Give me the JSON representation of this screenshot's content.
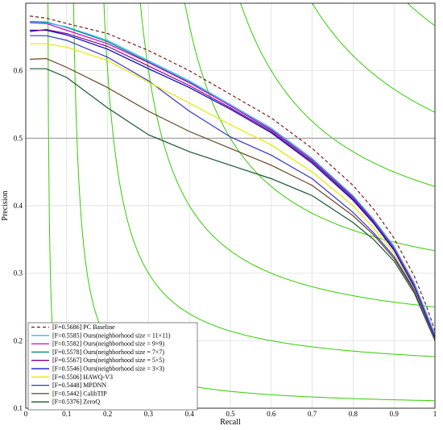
{
  "chart_data": {
    "type": "line",
    "xlabel": "Recall",
    "ylabel": "Precision",
    "xlim": [
      0,
      1
    ],
    "ylim": [
      0.1,
      0.7
    ],
    "xticks": [
      "0",
      "0.1",
      "0.2",
      "0.3",
      "0.4",
      "0.5",
      "0.6",
      "0.7",
      "0.8",
      "0.9",
      "1"
    ],
    "yticks": [
      "0.1",
      "0.2",
      "0.3",
      "0.4",
      "0.5",
      "0.6"
    ],
    "grid": true,
    "reference_line_y": 0.5,
    "legend_position": "bottom-left",
    "iso_f_color": "#33cc00",
    "iso_f_values": [
      0.1,
      0.2,
      0.3,
      0.4,
      0.5,
      0.6,
      0.7,
      0.8
    ],
    "series": [
      {
        "name": "[F=0.5686] PC Baseline",
        "color": "#7a1a1a",
        "dash": "4,3",
        "x": [
          0.01,
          0.05,
          0.1,
          0.2,
          0.3,
          0.4,
          0.5,
          0.6,
          0.7,
          0.8,
          0.85,
          0.9,
          0.95,
          0.98,
          1.0
        ],
        "y": [
          0.681,
          0.678,
          0.67,
          0.655,
          0.63,
          0.6,
          0.565,
          0.53,
          0.485,
          0.43,
          0.395,
          0.352,
          0.295,
          0.25,
          0.215
        ]
      },
      {
        "name": "[F=0.5585] Ours(neighborhood size = 11×11)",
        "color": "#33bbee",
        "dash": "",
        "x": [
          0.01,
          0.05,
          0.1,
          0.2,
          0.3,
          0.4,
          0.5,
          0.6,
          0.7,
          0.8,
          0.85,
          0.9,
          0.95,
          0.98,
          1.0
        ],
        "y": [
          0.672,
          0.671,
          0.665,
          0.645,
          0.615,
          0.585,
          0.55,
          0.515,
          0.47,
          0.415,
          0.38,
          0.34,
          0.285,
          0.24,
          0.21
        ]
      },
      {
        "name": "[F=0.5582] Ours(neighborhood size = 9×9)",
        "color": "#cc00cc",
        "dash": "",
        "x": [
          0.01,
          0.05,
          0.1,
          0.2,
          0.3,
          0.4,
          0.5,
          0.6,
          0.7,
          0.8,
          0.85,
          0.9,
          0.95,
          0.98,
          1.0
        ],
        "y": [
          0.671,
          0.67,
          0.66,
          0.64,
          0.612,
          0.582,
          0.548,
          0.513,
          0.468,
          0.413,
          0.378,
          0.338,
          0.283,
          0.238,
          0.208
        ]
      },
      {
        "name": "[F=0.5578] Ours(neighborhood size = 7×7)",
        "color": "#008080",
        "dash": "",
        "x": [
          0.01,
          0.05,
          0.1,
          0.2,
          0.3,
          0.4,
          0.5,
          0.6,
          0.7,
          0.8,
          0.85,
          0.9,
          0.95,
          0.98,
          1.0
        ],
        "y": [
          0.673,
          0.672,
          0.664,
          0.643,
          0.613,
          0.583,
          0.548,
          0.512,
          0.467,
          0.412,
          0.377,
          0.337,
          0.282,
          0.237,
          0.207
        ]
      },
      {
        "name": "[F=0.5567] Ours(neighborhood size = 5×5)",
        "color": "#880088",
        "dash": "",
        "x": [
          0.01,
          0.05,
          0.1,
          0.2,
          0.3,
          0.4,
          0.5,
          0.6,
          0.7,
          0.8,
          0.85,
          0.9,
          0.95,
          0.98,
          1.0
        ],
        "y": [
          0.658,
          0.661,
          0.655,
          0.636,
          0.607,
          0.578,
          0.545,
          0.51,
          0.465,
          0.41,
          0.376,
          0.336,
          0.281,
          0.236,
          0.206
        ]
      },
      {
        "name": "[F=0.5546] Ours(neighborhood size = 3×3)",
        "color": "#0000cc",
        "dash": "",
        "x": [
          0.01,
          0.05,
          0.1,
          0.2,
          0.3,
          0.4,
          0.5,
          0.6,
          0.7,
          0.8,
          0.85,
          0.9,
          0.95,
          0.98,
          1.0
        ],
        "y": [
          0.66,
          0.66,
          0.653,
          0.632,
          0.603,
          0.575,
          0.543,
          0.508,
          0.463,
          0.408,
          0.374,
          0.334,
          0.279,
          0.234,
          0.204
        ]
      },
      {
        "name": "[F=0.5506] HAWQ-V3",
        "color": "#e8e800",
        "dash": "",
        "x": [
          0.01,
          0.05,
          0.1,
          0.2,
          0.3,
          0.4,
          0.5,
          0.6,
          0.7,
          0.8,
          0.85,
          0.9,
          0.95,
          0.98,
          1.0
        ],
        "y": [
          0.64,
          0.64,
          0.635,
          0.615,
          0.583,
          0.552,
          0.52,
          0.49,
          0.45,
          0.4,
          0.367,
          0.33,
          0.277,
          0.233,
          0.203
        ]
      },
      {
        "name": "[F=0.5448] MPDNN",
        "color": "#3333cc",
        "dash": "",
        "x": [
          0.01,
          0.05,
          0.1,
          0.2,
          0.3,
          0.4,
          0.5,
          0.6,
          0.7,
          0.8,
          0.85,
          0.9,
          0.95,
          0.98,
          1.0
        ],
        "y": [
          0.652,
          0.652,
          0.645,
          0.62,
          0.585,
          0.54,
          0.502,
          0.475,
          0.44,
          0.39,
          0.36,
          0.325,
          0.275,
          0.232,
          0.202
        ]
      },
      {
        "name": "[F=0.5442] CalibTIP",
        "color": "#664422",
        "dash": "",
        "x": [
          0.01,
          0.05,
          0.1,
          0.2,
          0.3,
          0.4,
          0.5,
          0.6,
          0.7,
          0.8,
          0.85,
          0.9,
          0.95,
          0.98,
          1.0
        ],
        "y": [
          0.617,
          0.618,
          0.605,
          0.575,
          0.54,
          0.51,
          0.485,
          0.46,
          0.43,
          0.385,
          0.357,
          0.322,
          0.273,
          0.231,
          0.201
        ]
      },
      {
        "name": "[F=0.5376] ZeroQ",
        "color": "#1a5533",
        "dash": "",
        "x": [
          0.01,
          0.05,
          0.1,
          0.2,
          0.3,
          0.4,
          0.5,
          0.6,
          0.7,
          0.8,
          0.85,
          0.9,
          0.95,
          0.98,
          1.0
        ],
        "y": [
          0.603,
          0.603,
          0.59,
          0.545,
          0.505,
          0.48,
          0.46,
          0.44,
          0.415,
          0.375,
          0.35,
          0.318,
          0.27,
          0.228,
          0.2
        ]
      }
    ]
  }
}
